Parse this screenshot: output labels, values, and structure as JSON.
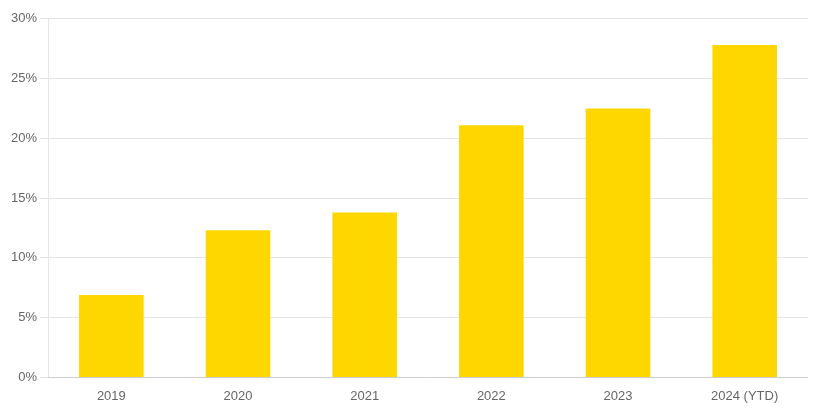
{
  "chart_data": {
    "type": "bar",
    "categories": [
      "2019",
      "2020",
      "2021",
      "2022",
      "2023",
      "2024 (YTD)"
    ],
    "values": [
      6.9,
      12.3,
      13.8,
      21.1,
      22.5,
      27.8
    ],
    "color": "#FFD700",
    "ylim": [
      0,
      30
    ],
    "yticks": [
      {
        "value": 0,
        "label": "0%"
      },
      {
        "value": 5,
        "label": "5%"
      },
      {
        "value": 10,
        "label": "10%"
      },
      {
        "value": 15,
        "label": "15%"
      },
      {
        "value": 20,
        "label": "20%"
      },
      {
        "value": 25,
        "label": "25%"
      },
      {
        "value": 30,
        "label": "30%"
      }
    ],
    "grid": true
  }
}
